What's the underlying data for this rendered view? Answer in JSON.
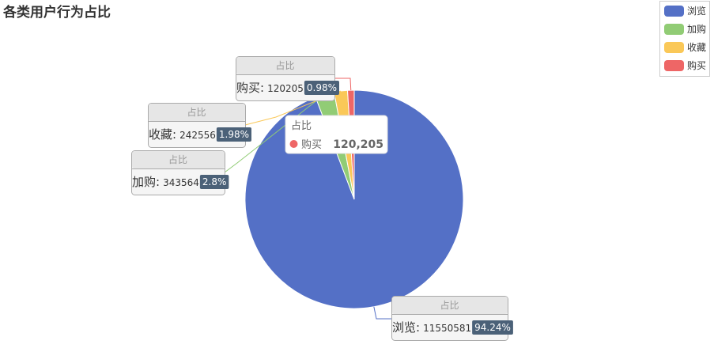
{
  "chart_data": {
    "type": "pie",
    "title": "各类用户行为占比",
    "series_name": "占比",
    "slices": [
      {
        "name": "浏览",
        "value": 11550581,
        "percent": "94.24%",
        "color": "#5470c6"
      },
      {
        "name": "加购",
        "value": 343564,
        "percent": "2.8%",
        "color": "#91cc75"
      },
      {
        "name": "收藏",
        "value": 242556,
        "percent": "1.98%",
        "color": "#fac858"
      },
      {
        "name": "购买",
        "value": 120205,
        "percent": "0.98%",
        "color": "#ee6666"
      }
    ],
    "legend_position": "top-right",
    "tooltip": {
      "series": "占比",
      "name": "购买",
      "value": "120,205"
    }
  }
}
